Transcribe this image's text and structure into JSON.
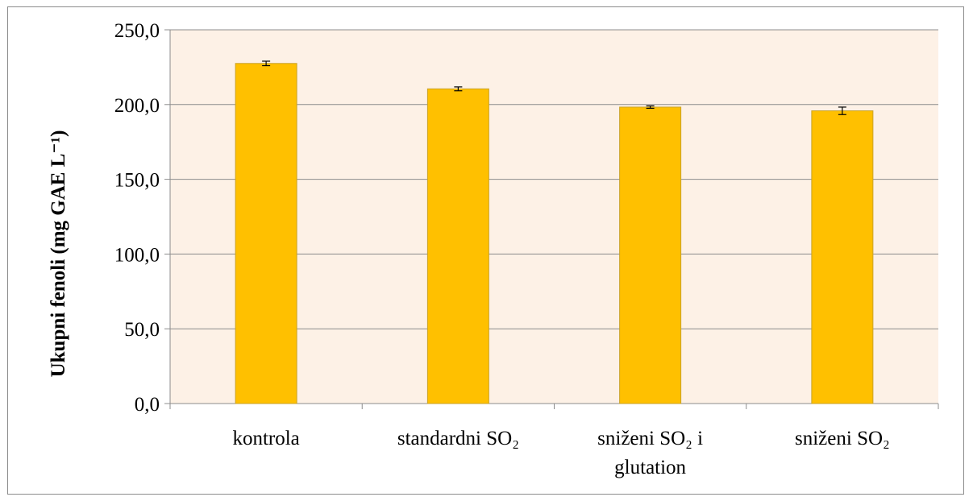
{
  "chart_data": {
    "type": "bar",
    "categories": [
      {
        "line1": "kontrola",
        "line2": ""
      },
      {
        "line1": "standardni SO₂",
        "line2": ""
      },
      {
        "line1": "sniženi SO₂ i",
        "line2": "glutation"
      },
      {
        "line1": "sniženi SO₂",
        "line2": ""
      }
    ],
    "values": [
      227.5,
      210.5,
      198.3,
      195.8
    ],
    "errors": [
      1.5,
      1.3,
      0.8,
      2.5
    ],
    "ylabel": "Ukupni  fenoli (mg GAE L⁻¹)",
    "ylim": [
      0,
      250
    ],
    "yticks": [
      "0,0",
      "50,0",
      "100,0",
      "150,0",
      "200,0",
      "250,0"
    ],
    "grid": true,
    "colors": {
      "bar_fill": "#FFC000",
      "bar_stroke": "#C9A227",
      "plot_background": "#FDF1E6",
      "gridline": "#8C8C8C",
      "error_bar": "#000000"
    }
  }
}
